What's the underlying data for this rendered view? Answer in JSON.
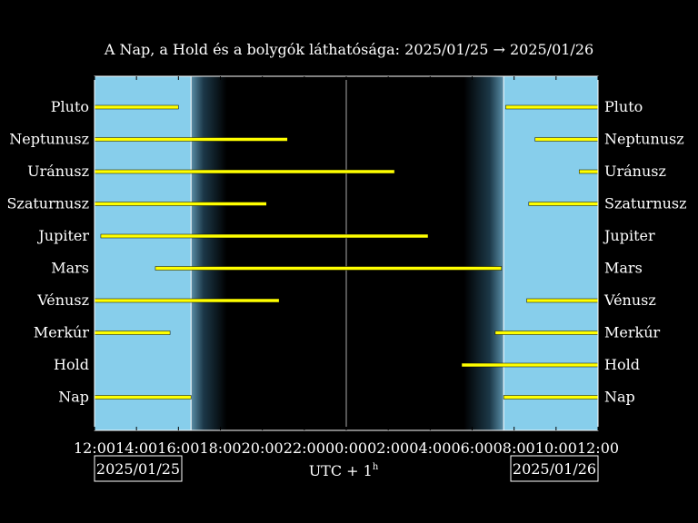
{
  "chart_data": {
    "type": "bar",
    "title": "A Nap, a Hold és a bolygók láthatósága: 2025/01/25 → 2025/01/26",
    "xlabel": "UTC + 1",
    "xlabel_sup": "h",
    "date_start": "2025/01/25",
    "date_end": "2025/01/26",
    "x_range_hours": [
      12,
      36
    ],
    "x_ticks": [
      "12:00",
      "14:00",
      "16:00",
      "18:00",
      "20:00",
      "22:00",
      "00:00",
      "02:00",
      "04:00",
      "06:00",
      "08:00",
      "10:00",
      "12:00"
    ],
    "sunset_hour": 16.6,
    "dusk_end_hour": 18.3,
    "dawn_start_hour": 29.6,
    "sunrise_hour": 31.5,
    "midnight_hour": 24,
    "colors": {
      "day": "#87ceeb",
      "night": "#000000",
      "bar": "#ffff00"
    },
    "categories": [
      "Pluto",
      "Neptunusz",
      "Uránusz",
      "Szaturnusz",
      "Jupiter",
      "Mars",
      "Vénusz",
      "Merkúr",
      "Hold",
      "Nap"
    ],
    "right_categories": [
      "Pluto",
      "Neptunusz",
      "Uránusz",
      "Szaturnusz",
      "Jupiter",
      "Mars",
      "Vénusz",
      "Merkúr",
      "Hold",
      "Nap"
    ],
    "series": [
      {
        "name": "Pluto",
        "intervals": [
          [
            12.0,
            16.0
          ],
          [
            31.6,
            36.0
          ]
        ]
      },
      {
        "name": "Neptunusz",
        "intervals": [
          [
            12.0,
            21.2
          ],
          [
            33.0,
            36.0
          ]
        ]
      },
      {
        "name": "Uránusz",
        "intervals": [
          [
            12.0,
            26.3
          ],
          [
            35.1,
            36.0
          ]
        ]
      },
      {
        "name": "Szaturnusz",
        "intervals": [
          [
            12.0,
            20.2
          ],
          [
            32.7,
            36.0
          ]
        ]
      },
      {
        "name": "Jupiter",
        "intervals": [
          [
            12.3,
            27.9
          ]
        ]
      },
      {
        "name": "Mars",
        "intervals": [
          [
            14.9,
            31.4
          ]
        ]
      },
      {
        "name": "Vénusz",
        "intervals": [
          [
            12.0,
            20.8
          ],
          [
            32.6,
            36.0
          ]
        ]
      },
      {
        "name": "Merkúr",
        "intervals": [
          [
            12.0,
            15.6
          ],
          [
            31.1,
            36.0
          ]
        ]
      },
      {
        "name": "Hold",
        "intervals": [
          [
            29.5,
            36.0
          ]
        ]
      },
      {
        "name": "Nap",
        "intervals": [
          [
            12.0,
            16.6
          ],
          [
            31.5,
            36.0
          ]
        ]
      }
    ]
  }
}
